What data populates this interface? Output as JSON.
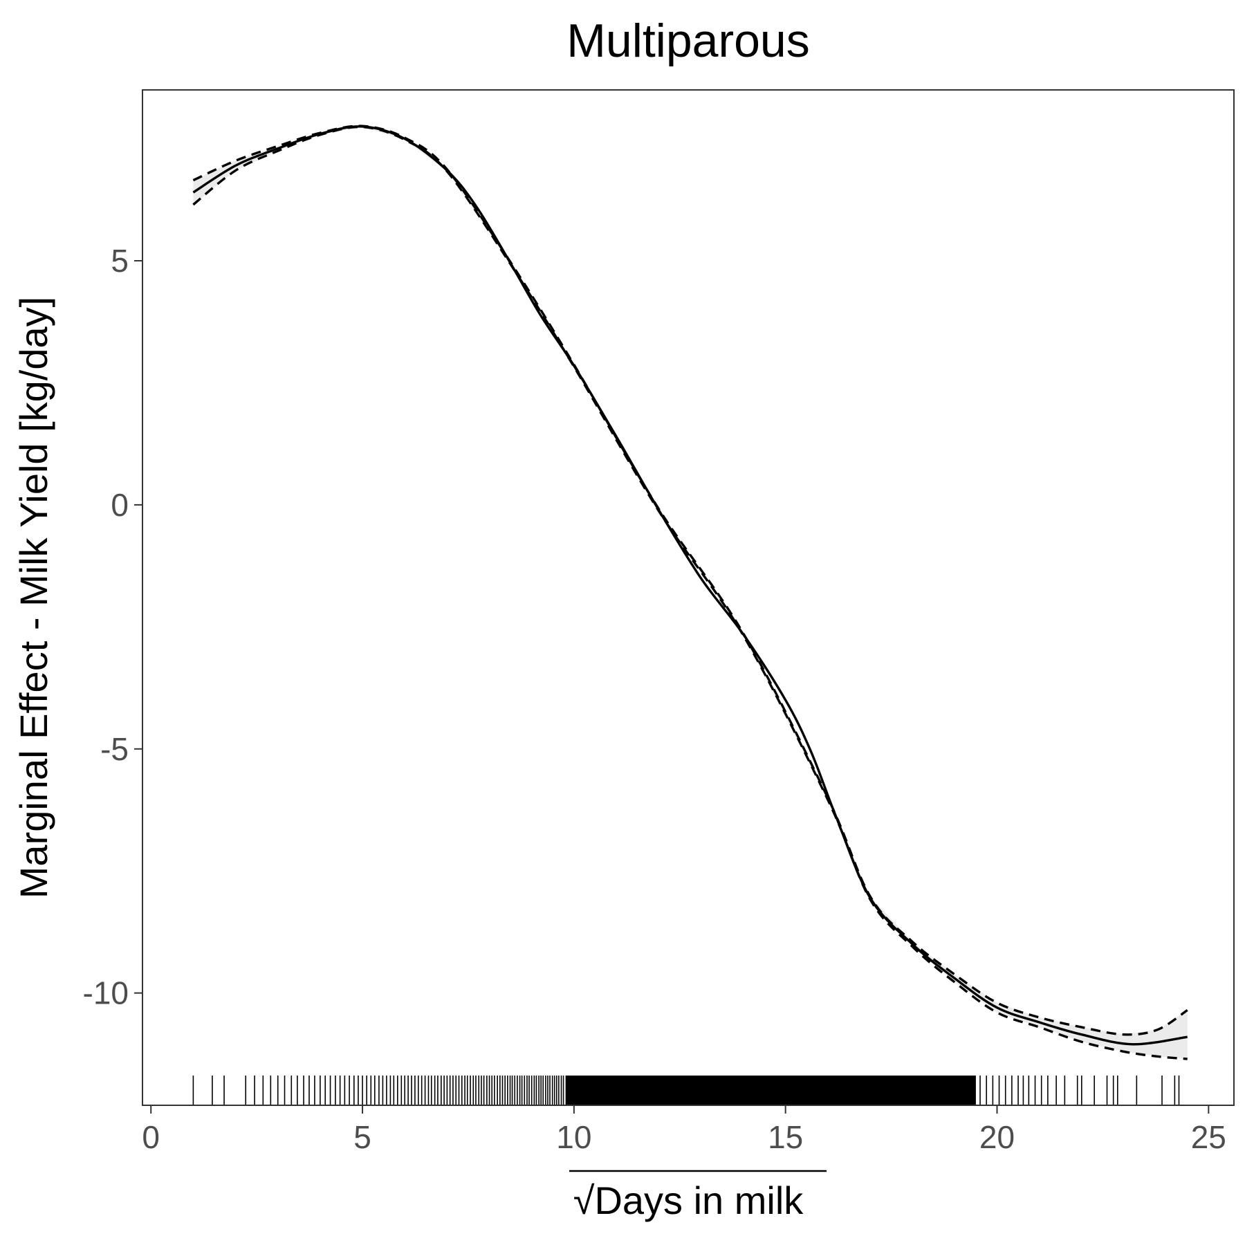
{
  "chart_data": {
    "type": "line",
    "title": "Multiparous",
    "xlabel": "Days in milk",
    "xlabel_prefix": "√",
    "ylabel": "Marginal Effect - Milk Yield [kg/day]",
    "xlim": [
      -0.2,
      25.6
    ],
    "ylim": [
      -12.3,
      8.5
    ],
    "xticks": [
      0,
      5,
      10,
      15,
      20,
      25
    ],
    "yticks": [
      -10,
      -5,
      0,
      5
    ],
    "xtick_labels": [
      "0",
      "5",
      "10",
      "15",
      "20",
      "25"
    ],
    "ytick_labels": [
      "-10",
      "-5",
      "0",
      "5"
    ],
    "grid": false,
    "legend": "none",
    "colors": {
      "line": "#000000",
      "ribbon": "#ebebeb",
      "panel_border": "#333333",
      "rug": "#000000"
    },
    "series": [
      {
        "role": "estimate",
        "x": [
          1.0,
          2.0,
          3.0,
          4.0,
          5.0,
          6.0,
          7.0,
          7.7,
          8.5,
          9.2,
          10.0,
          11.0,
          12.0,
          13.0,
          14.0,
          15.0,
          15.6,
          16.2,
          17.0,
          18.0,
          19.0,
          20.0,
          21.0,
          22.0,
          23.2,
          24.5
        ],
        "y": [
          6.4,
          6.95,
          7.3,
          7.6,
          7.75,
          7.5,
          6.85,
          6.1,
          4.95,
          3.9,
          2.85,
          1.4,
          -0.1,
          -1.5,
          -2.65,
          -4.0,
          -5.05,
          -6.4,
          -8.05,
          -9.0,
          -9.7,
          -10.3,
          -10.6,
          -10.85,
          -11.05,
          -10.9
        ]
      },
      {
        "role": "upper-ci",
        "x": [
          1.0,
          2.0,
          3.0,
          4.0,
          5.0,
          6.0,
          7.0,
          8.5,
          10.0,
          12.0,
          14.0,
          16.0,
          17.0,
          18.0,
          19.0,
          20.0,
          21.0,
          22.0,
          23.0,
          23.8,
          24.5
        ],
        "y": [
          6.65,
          7.05,
          7.35,
          7.62,
          7.76,
          7.52,
          6.87,
          4.97,
          2.87,
          -0.08,
          -2.63,
          -6.0,
          -8.02,
          -8.95,
          -9.62,
          -10.2,
          -10.5,
          -10.7,
          -10.85,
          -10.75,
          -10.35
        ]
      },
      {
        "role": "lower-ci",
        "x": [
          1.0,
          2.0,
          3.0,
          4.0,
          5.0,
          6.0,
          7.0,
          8.5,
          10.0,
          12.0,
          14.0,
          16.0,
          17.0,
          18.0,
          19.0,
          20.0,
          21.0,
          22.0,
          23.0,
          23.8,
          24.5
        ],
        "y": [
          6.15,
          6.85,
          7.25,
          7.58,
          7.74,
          7.48,
          6.83,
          4.93,
          2.83,
          -0.12,
          -2.67,
          -6.04,
          -8.08,
          -9.05,
          -9.78,
          -10.4,
          -10.7,
          -11.0,
          -11.2,
          -11.3,
          -11.35
        ]
      }
    ],
    "rug": {
      "explicit": [
        1.0,
        1.45,
        1.73,
        2.24,
        2.45,
        2.65,
        2.83,
        3.0,
        3.16,
        3.32,
        3.46,
        3.61,
        3.74,
        3.87,
        4.0,
        4.12,
        4.24,
        4.36,
        4.47,
        4.58,
        4.69,
        4.8,
        4.9,
        5.0,
        5.1,
        5.2,
        5.29,
        5.39,
        5.48,
        5.57,
        5.66,
        5.74,
        5.83,
        5.92,
        6.0,
        6.08,
        6.16,
        6.24,
        6.32,
        6.4,
        6.48,
        6.56,
        6.63,
        6.71,
        6.78,
        6.86,
        6.93,
        7.0,
        7.07,
        7.14,
        7.21,
        7.28,
        7.35,
        7.42,
        7.48,
        7.55,
        7.62,
        7.68,
        7.75,
        7.81,
        7.87,
        7.94,
        8.0,
        8.06,
        8.12,
        8.19,
        8.25,
        8.31,
        8.37,
        8.43,
        8.49,
        8.54,
        8.6,
        8.66,
        8.72,
        8.77,
        8.83,
        8.89,
        8.94,
        9.0,
        9.06,
        9.11,
        9.17,
        9.22,
        9.27,
        9.33,
        9.38,
        9.43,
        9.49,
        9.54,
        9.59,
        9.64,
        9.7,
        9.75,
        19.6,
        19.75,
        19.9,
        20.05,
        20.2,
        20.35,
        20.5,
        20.62,
        20.75,
        20.9,
        21.05,
        21.2,
        21.4,
        21.6,
        21.9,
        22.0,
        22.3,
        22.6,
        22.75,
        22.85,
        23.3,
        23.9,
        24.2,
        24.3
      ],
      "dense_range": [
        9.8,
        19.5
      ]
    }
  }
}
